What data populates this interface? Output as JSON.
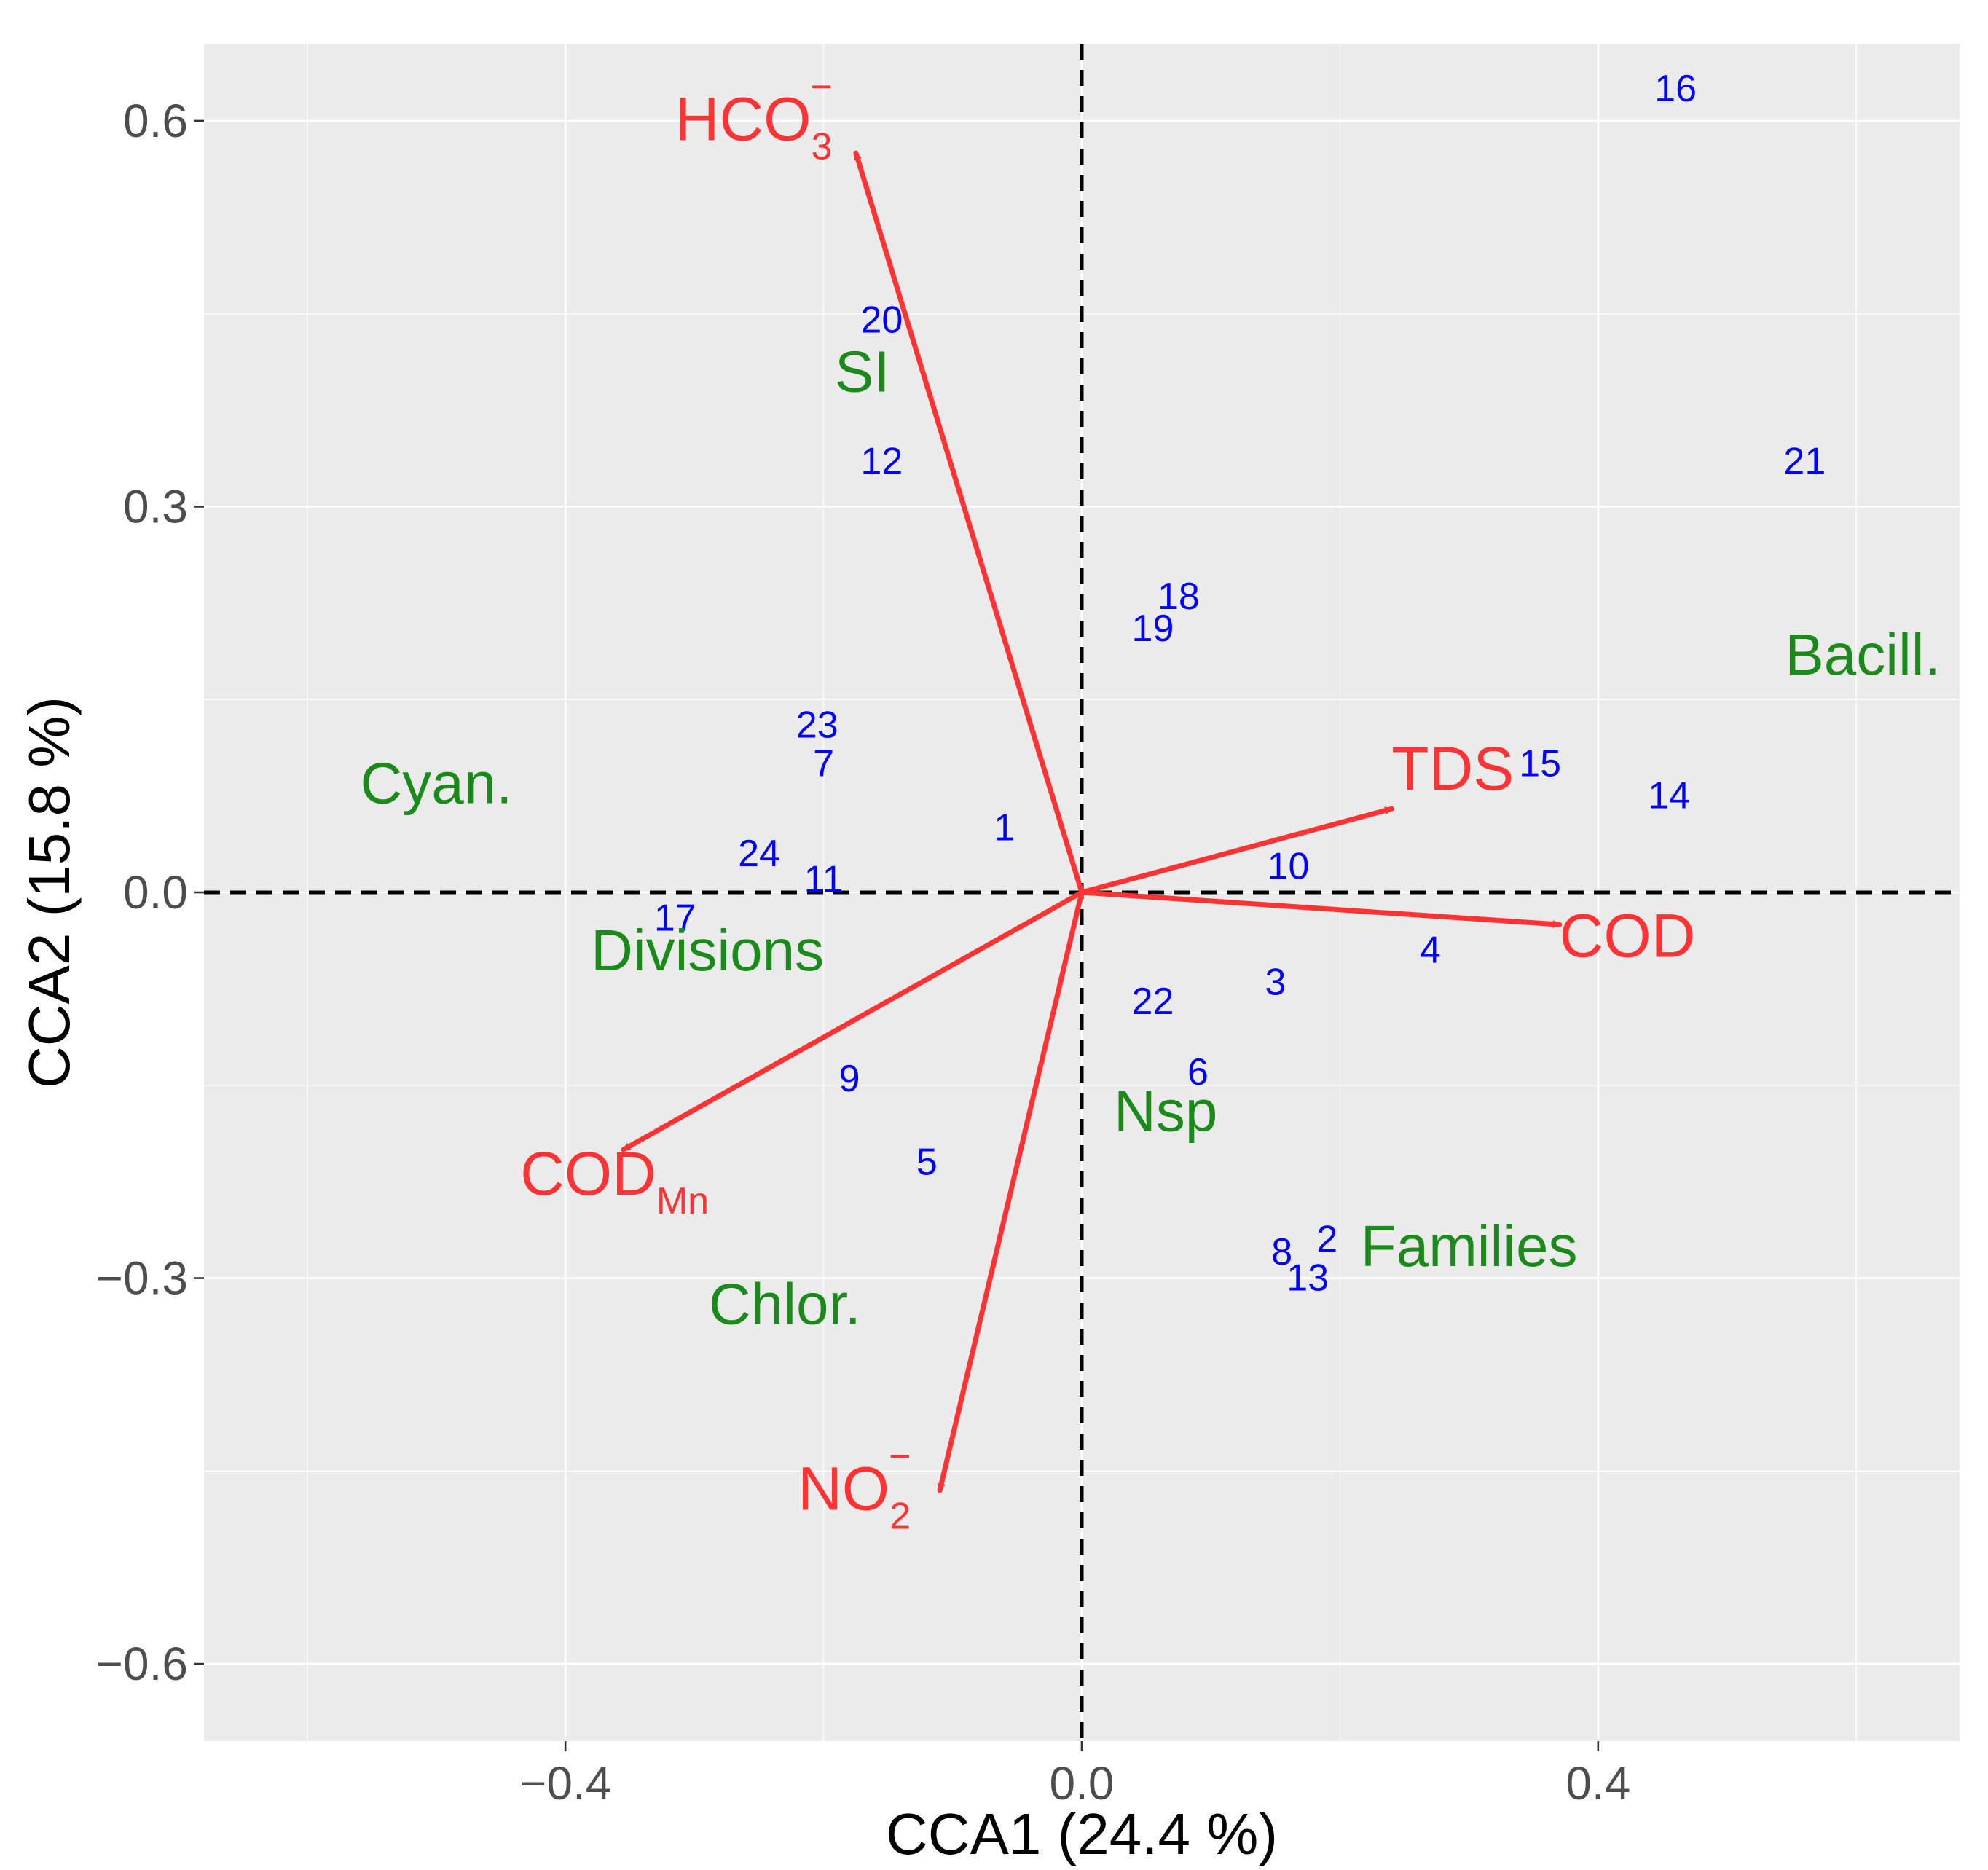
{
  "chart_data": {
    "type": "scatter",
    "subtype": "CCA triplot",
    "xlabel": "CCA1 (24.4 %)",
    "ylabel": "CCA2 (15.8 %)",
    "xlim": [
      -0.68,
      0.68
    ],
    "ylim": [
      -0.66,
      0.66
    ],
    "x_ticks": [
      -0.4,
      0.0,
      0.4
    ],
    "x_tick_labels": [
      "−0.4",
      "0.0",
      "0.4"
    ],
    "y_ticks": [
      -0.6,
      -0.3,
      0.0,
      0.3,
      0.6
    ],
    "y_tick_labels": [
      "−0.6",
      "−0.3",
      "0.0",
      "0.3",
      "0.6"
    ],
    "reference_lines": [
      {
        "axis": "x",
        "value": 0.0,
        "style": "dashed"
      },
      {
        "axis": "y",
        "value": 0.0,
        "style": "dashed"
      }
    ],
    "colors": {
      "sites": "#0000ff",
      "species": "#1a8a1a",
      "env": "#ff3333",
      "panel": "#ebebeb",
      "grid": "#ffffff",
      "tick_text": "#4d4d4d"
    },
    "sites": [
      {
        "label": "1",
        "x": -0.06,
        "y": 0.05
      },
      {
        "label": "2",
        "x": 0.19,
        "y": -0.27
      },
      {
        "label": "3",
        "x": 0.15,
        "y": -0.07
      },
      {
        "label": "4",
        "x": 0.27,
        "y": -0.045
      },
      {
        "label": "5",
        "x": -0.12,
        "y": -0.21
      },
      {
        "label": "6",
        "x": 0.09,
        "y": -0.14
      },
      {
        "label": "7",
        "x": -0.2,
        "y": 0.1
      },
      {
        "label": "8",
        "x": 0.155,
        "y": -0.28
      },
      {
        "label": "9",
        "x": -0.18,
        "y": -0.145
      },
      {
        "label": "10",
        "x": 0.16,
        "y": 0.02
      },
      {
        "label": "11",
        "x": -0.2,
        "y": 0.01
      },
      {
        "label": "12",
        "x": -0.155,
        "y": 0.335
      },
      {
        "label": "13",
        "x": 0.175,
        "y": -0.3
      },
      {
        "label": "14",
        "x": 0.455,
        "y": 0.075
      },
      {
        "label": "15",
        "x": 0.355,
        "y": 0.1
      },
      {
        "label": "16",
        "x": 0.46,
        "y": 0.625
      },
      {
        "label": "17",
        "x": -0.315,
        "y": -0.02
      },
      {
        "label": "18",
        "x": 0.075,
        "y": 0.23
      },
      {
        "label": "19",
        "x": 0.055,
        "y": 0.205
      },
      {
        "label": "20",
        "x": -0.155,
        "y": 0.445
      },
      {
        "label": "21",
        "x": 0.56,
        "y": 0.335
      },
      {
        "label": "22",
        "x": 0.055,
        "y": -0.085
      },
      {
        "label": "23",
        "x": -0.205,
        "y": 0.13
      },
      {
        "label": "24",
        "x": -0.25,
        "y": 0.03
      }
    ],
    "species": [
      {
        "label": "SI",
        "x": -0.17,
        "y": 0.405
      },
      {
        "label": "Bacill.",
        "x": 0.605,
        "y": 0.185
      },
      {
        "label": "Cyan.",
        "x": -0.5,
        "y": 0.085
      },
      {
        "label": "Divisions",
        "x": -0.29,
        "y": -0.045
      },
      {
        "label": "Nsp",
        "x": 0.065,
        "y": -0.17
      },
      {
        "label": "Families",
        "x": 0.3,
        "y": -0.275
      },
      {
        "label": "Chlor.",
        "x": -0.23,
        "y": -0.32
      }
    ],
    "env_vectors": [
      {
        "label": "HCO",
        "sub": "3",
        "sup": "−",
        "x": -0.175,
        "y": 0.575,
        "label_x": -0.315,
        "label_y": 0.585
      },
      {
        "label": "TDS",
        "sub": "",
        "sup": "",
        "x": 0.24,
        "y": 0.065,
        "label_x": 0.24,
        "label_y": 0.08
      },
      {
        "label": "COD",
        "sub": "",
        "sup": "",
        "x": 0.37,
        "y": -0.025,
        "label_x": 0.37,
        "label_y": -0.05
      },
      {
        "label": "COD",
        "sub": "Mn",
        "sup": "",
        "x": -0.355,
        "y": -0.2,
        "label_x": -0.435,
        "label_y": -0.235
      },
      {
        "label": "NO",
        "sub": "2",
        "sup": "−",
        "x": -0.11,
        "y": -0.465,
        "label_x": -0.22,
        "label_y": -0.48
      }
    ]
  }
}
